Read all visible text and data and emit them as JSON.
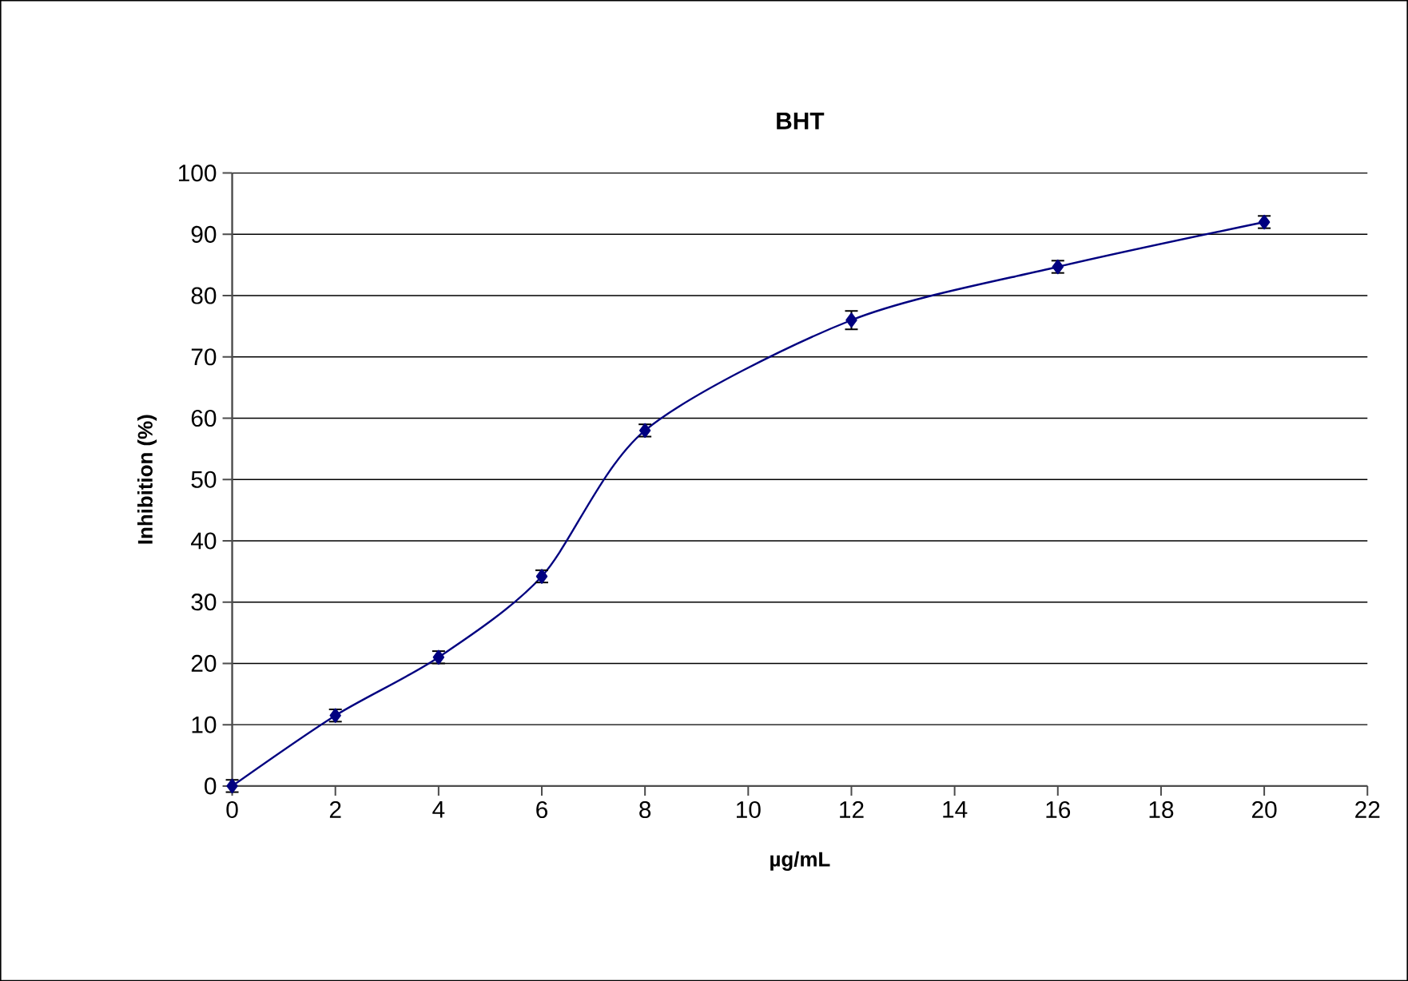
{
  "chart_data": {
    "type": "line",
    "title": "BHT",
    "xlabel": "µg/mL",
    "ylabel": "Inhibition (%)",
    "x": [
      0,
      2,
      4,
      6,
      8,
      12,
      16,
      20
    ],
    "series": [
      {
        "color": "#000080",
        "values": [
          0,
          11.5,
          21,
          34.2,
          58,
          76,
          84.7,
          92
        ],
        "errors": [
          1,
          1,
          1,
          1,
          1,
          1.5,
          1,
          1
        ]
      }
    ],
    "xlim": [
      0,
      22
    ],
    "xticks": [
      0,
      2,
      4,
      6,
      8,
      10,
      12,
      14,
      16,
      18,
      20,
      22
    ],
    "ylim": [
      0,
      100
    ],
    "yticks": [
      0,
      10,
      20,
      30,
      40,
      50,
      60,
      70,
      80,
      90,
      100
    ],
    "grid": "y",
    "marker": "diamond",
    "line_style": "solid"
  }
}
